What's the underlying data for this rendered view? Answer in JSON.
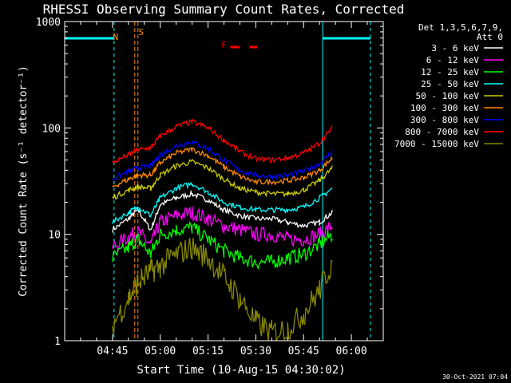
{
  "chart_data": {
    "type": "line",
    "title": "RHESSI Observing Summary Count Rates, Corrected",
    "xlabel": "Start Time (10-Aug-15 04:30:02)",
    "ylabel": "Corrected Count Rate (s⁻¹ detector⁻¹)",
    "yscale": "log",
    "ylim": [
      1,
      1000
    ],
    "xlim": [
      "04:30",
      "06:10"
    ],
    "x_ticks": [
      "04:45",
      "05:00",
      "05:15",
      "05:30",
      "05:45",
      "06:00"
    ],
    "y_ticks": [
      "1",
      "10",
      "100",
      "1000"
    ],
    "timestamp": "30-Oct-2021 07:04",
    "legend": {
      "position": "right",
      "header": [
        "Det 1,3,5,6,7,9,",
        "Att 0"
      ]
    },
    "annotations": [
      {
        "label": "N",
        "time": "04:46",
        "color": "#ff9900"
      },
      {
        "label": "S",
        "time": "04:54",
        "color": "#ff8c00"
      },
      {
        "label": "F",
        "time": "05:20",
        "color": "#ff0000"
      }
    ],
    "night_intervals": [
      [
        "04:30",
        "04:45.5"
      ],
      [
        "05:51",
        "06:06"
      ]
    ],
    "saa_markers": [
      "04:52",
      "04:53"
    ],
    "flare_segments": [
      [
        "05:22",
        "05:25"
      ],
      [
        "05:28",
        "05:30.5"
      ]
    ],
    "x": [
      "04:40",
      "04:45",
      "04:50",
      "04:53",
      "04:57",
      "05:00",
      "05:05",
      "05:10",
      "05:15",
      "05:20",
      "05:25",
      "05:30",
      "05:35",
      "05:40",
      "05:45",
      "05:50",
      "05:54"
    ],
    "series": [
      {
        "name": "3 - 6 keV",
        "color": "#ffffff",
        "values": [
          null,
          11,
          14,
          17,
          11,
          19,
          22,
          24,
          21,
          17,
          15,
          14,
          14,
          13,
          12,
          13,
          16
        ]
      },
      {
        "name": "6 - 12 keV",
        "color": "#ff00ff",
        "values": [
          null,
          7.5,
          9.5,
          10.5,
          8,
          13,
          15,
          16,
          14,
          12,
          11,
          10,
          10,
          9,
          9,
          10,
          12
        ]
      },
      {
        "name": "12 - 25 keV",
        "color": "#00ff00",
        "values": [
          null,
          6,
          7.5,
          9,
          6.5,
          10,
          11,
          11.5,
          9,
          7,
          6,
          5.5,
          5.5,
          6,
          6.5,
          8,
          10
        ]
      },
      {
        "name": "25 - 50 keV",
        "color": "#00ffff",
        "values": [
          null,
          13,
          16,
          18,
          15,
          22,
          27,
          30,
          25,
          20,
          18,
          17,
          17,
          17,
          18,
          22,
          27
        ]
      },
      {
        "name": "50 - 100 keV",
        "color": "#cccc00",
        "values": [
          null,
          22,
          26,
          28,
          27,
          36,
          44,
          48,
          42,
          33,
          27,
          25,
          24,
          24,
          26,
          32,
          42
        ]
      },
      {
        "name": "100 - 300 keV",
        "color": "#ff8800",
        "values": [
          null,
          28,
          33,
          36,
          36,
          47,
          58,
          63,
          55,
          43,
          35,
          31,
          31,
          32,
          34,
          40,
          52
        ]
      },
      {
        "name": "300 - 800 keV",
        "color": "#0000ff",
        "values": [
          null,
          33,
          39,
          42,
          44,
          56,
          68,
          74,
          64,
          50,
          40,
          36,
          35,
          36,
          39,
          46,
          60
        ]
      },
      {
        "name": "800 - 7000 keV",
        "color": "#ff0000",
        "values": [
          null,
          47,
          56,
          62,
          65,
          84,
          103,
          114,
          100,
          77,
          60,
          51,
          50,
          52,
          58,
          72,
          100
        ]
      },
      {
        "name": "7000 - 15000 keV",
        "color": "#888800",
        "values": [
          null,
          1.4,
          2.5,
          3.5,
          4.5,
          5,
          6.5,
          7.5,
          6,
          4,
          2.5,
          1.5,
          1.2,
          1.3,
          1.8,
          3,
          5.5
        ]
      }
    ]
  }
}
